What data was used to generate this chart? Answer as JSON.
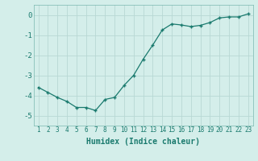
{
  "x": [
    1,
    2,
    3,
    4,
    5,
    6,
    7,
    8,
    9,
    10,
    11,
    12,
    13,
    14,
    15,
    16,
    17,
    18,
    19,
    20,
    21,
    22,
    23
  ],
  "y": [
    -3.6,
    -3.85,
    -4.1,
    -4.3,
    -4.6,
    -4.6,
    -4.75,
    -4.2,
    -4.1,
    -3.5,
    -3.0,
    -2.2,
    -1.5,
    -0.75,
    -0.45,
    -0.5,
    -0.58,
    -0.52,
    -0.38,
    -0.15,
    -0.1,
    -0.1,
    0.05
  ],
  "line_color": "#1a7a6e",
  "marker": "+",
  "marker_size": 3.5,
  "bg_color": "#d4eeea",
  "grid_color": "#b8d8d4",
  "tick_color": "#1a7a6e",
  "xlabel": "Humidex (Indice chaleur)",
  "xlabel_fontsize": 7,
  "ylim": [
    -5.5,
    0.5
  ],
  "xlim": [
    0.5,
    23.5
  ],
  "yticks": [
    0,
    -1,
    -2,
    -3,
    -4,
    -5
  ],
  "xticks": [
    1,
    2,
    3,
    4,
    5,
    6,
    7,
    8,
    9,
    10,
    11,
    12,
    13,
    14,
    15,
    16,
    17,
    18,
    19,
    20,
    21,
    22,
    23
  ],
  "tick_fontsize": 5.5,
  "ytick_fontsize": 6.5,
  "marker_color": "#1a7a6e",
  "line_width": 0.9
}
